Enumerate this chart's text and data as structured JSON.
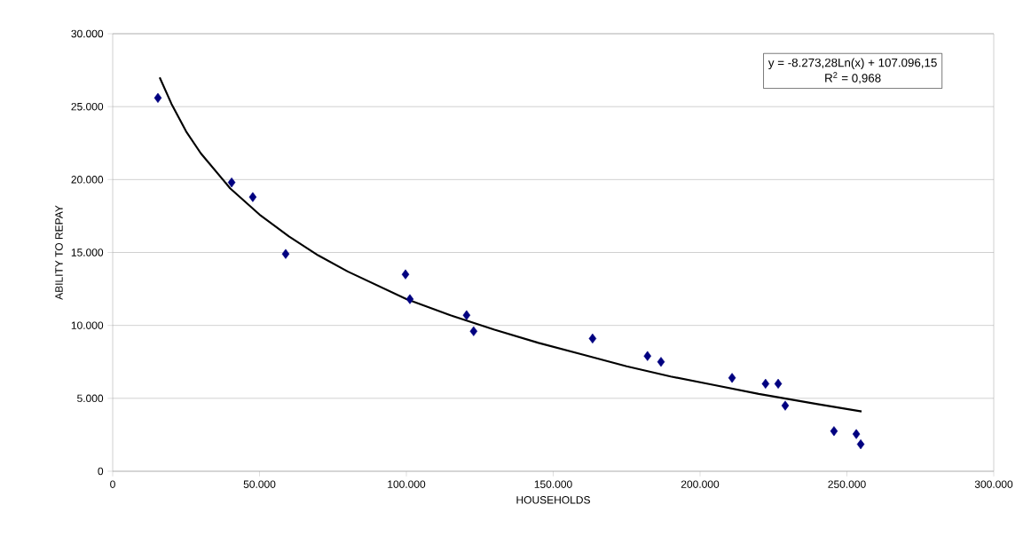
{
  "chart_data": {
    "type": "scatter",
    "xlabel": "HOUSEHOLDS",
    "ylabel": "ABILITY TO REPAY",
    "annotations": [
      "y = -8.273,28Ln(x) + 107.096,15",
      "R$^{2}$ = 0,968"
    ],
    "series": [
      {
        "marker": "diamond",
        "color": "#000080",
        "x": [
          15400,
          40500,
          47700,
          58900,
          99700,
          101200,
          120500,
          122900,
          163400,
          182100,
          186700,
          210900,
          222300,
          226600,
          229000,
          245600,
          253200,
          254700
        ],
        "values": [
          25600,
          19800,
          18800,
          14900,
          13500,
          11800,
          10700,
          9600,
          9100,
          7900,
          7500,
          6400,
          6000,
          6000,
          4500,
          2750,
          2550,
          1850
        ]
      },
      {
        "type": "line",
        "marker": "none",
        "color": "#000000",
        "x": [
          16000,
          20000,
          25000,
          30000,
          40000,
          50000,
          60000,
          70000,
          80000,
          100000,
          115000,
          130000,
          145000,
          160000,
          175000,
          190000,
          205000,
          220000,
          240000,
          255000
        ],
        "values": [
          27000,
          25200,
          23300,
          21800,
          19400,
          17600,
          16100,
          14800,
          13700,
          11800,
          10700,
          9700,
          8800,
          8000,
          7200,
          6500,
          5900,
          5300,
          4600,
          4100
        ]
      }
    ],
    "grid": "y",
    "xlim": [
      0,
      300000
    ],
    "ylim": [
      0,
      30000
    ],
    "xticks": [
      0,
      {
        "value": 50000,
        "label": "50.000"
      },
      {
        "value": 100000,
        "label": "100.000"
      },
      {
        "value": 150000,
        "label": "150.000"
      },
      {
        "value": 200000,
        "label": "200.000"
      },
      {
        "value": 250000,
        "label": "250.000"
      },
      {
        "value": 300000,
        "label": "300.000"
      }
    ],
    "yticks": [
      0,
      {
        "value": 5000,
        "label": "5.000"
      },
      {
        "value": 10000,
        "label": "10.000"
      },
      {
        "value": 15000,
        "label": "15.000"
      },
      {
        "value": 20000,
        "label": "20.000"
      },
      {
        "value": 25000,
        "label": "25.000"
      },
      {
        "value": 30000,
        "label": "30.000"
      }
    ]
  }
}
